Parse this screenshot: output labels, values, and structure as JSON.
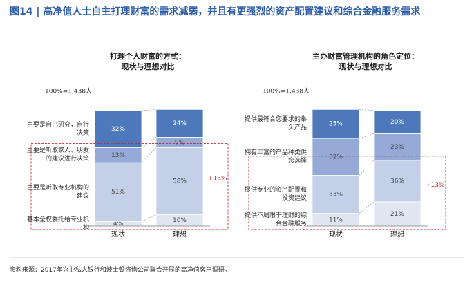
{
  "title": "图14 | 高净值人士自主打理财富的需求减弱，并且有更强烈的资产配置建议和综合金融服务需求",
  "source": "资料来源：2017年兴业私人银行和波士顿咨询公司联合开展的高净值客户调研。",
  "chart_data": [
    {
      "type": "bar",
      "stacked": true,
      "title": "打理个人财富的方式：",
      "subtitle": "现状与理想对比",
      "note": "100%=1,438人",
      "categories": [
        "现状",
        "理想"
      ],
      "series": [
        {
          "name": "基本全权委托给专业机构",
          "color": "#dfe6f2",
          "values": [
            4,
            10
          ],
          "value_labels": [
            "4%",
            "10%"
          ]
        },
        {
          "name": "主要是听取专业机构的建议",
          "color": "#c3d0e8",
          "values": [
            51,
            58
          ],
          "value_labels": [
            "51%",
            "58%"
          ]
        },
        {
          "name": "主要是听取家人、朋友的建议进行决策",
          "color": "#95aad6",
          "values": [
            13,
            9
          ],
          "value_labels": [
            "13%",
            "9%"
          ]
        },
        {
          "name": "主要是自己研究，自行决策",
          "color": "#4d78bb",
          "values": [
            32,
            24
          ],
          "value_labels": [
            "32%",
            "24%"
          ]
        }
      ],
      "annotation": "+13%"
    },
    {
      "type": "bar",
      "stacked": true,
      "title": "主办财富管理机构的角色定位：",
      "subtitle": "现状与理想对比",
      "note": "100%=1,438人",
      "categories": [
        "现状",
        "理想"
      ],
      "series": [
        {
          "name": "提供不局限于理财的综合金融服务",
          "color": "#dfe6f2",
          "values": [
            11,
            21
          ],
          "value_labels": [
            "11%",
            "21%"
          ]
        },
        {
          "name": "提供专业的资产配置和投资建议",
          "color": "#c3d0e8",
          "values": [
            33,
            36
          ],
          "value_labels": [
            "33%",
            "36%"
          ]
        },
        {
          "name": "拥有丰富的产品种类供您选择",
          "color": "#95aad6",
          "values": [
            32,
            23
          ],
          "value_labels": [
            "32%",
            "23%"
          ]
        },
        {
          "name": "提供最符合您要求的拳头产品",
          "color": "#4d78bb",
          "values": [
            25,
            20
          ],
          "value_labels": [
            "25%",
            "20%"
          ]
        }
      ],
      "annotation": "+13%"
    }
  ]
}
